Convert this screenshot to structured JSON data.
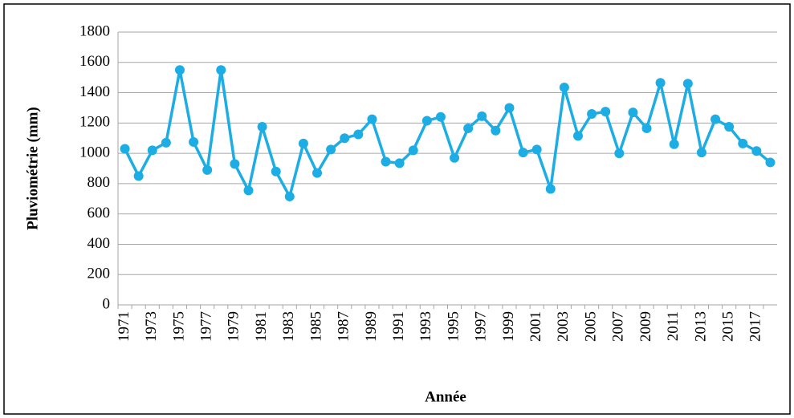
{
  "chart_data": {
    "type": "line",
    "x_label": "Année",
    "y_label": "Pluviométrie (mm)",
    "categories": [
      "1971",
      null,
      "1973",
      null,
      "1975",
      null,
      "1977",
      null,
      "1979",
      null,
      "1981",
      null,
      "1983",
      null,
      "1985",
      null,
      "1987",
      null,
      "1989",
      null,
      "1991",
      null,
      "1993",
      null,
      "1995",
      null,
      "1997",
      null,
      "1999",
      null,
      "2001",
      null,
      "2003",
      null,
      "2005",
      null,
      "2007",
      null,
      "2009",
      null,
      "2011",
      null,
      "2013",
      null,
      "2015",
      null,
      "2017",
      null
    ],
    "values": [
      1030,
      850,
      1020,
      1070,
      1550,
      1075,
      890,
      1550,
      930,
      755,
      1175,
      880,
      715,
      1065,
      870,
      1025,
      1100,
      1125,
      1225,
      945,
      935,
      1020,
      1215,
      1240,
      970,
      1165,
      1245,
      1150,
      1300,
      1005,
      1025,
      765,
      1435,
      1115,
      1260,
      1275,
      1000,
      1270,
      1165,
      1465,
      1060,
      1460,
      1005,
      1225,
      1175,
      1065,
      1015,
      940
    ],
    "color": "#1cade4",
    "ylim": [
      0,
      1800
    ],
    "yticks": [
      0,
      200,
      400,
      600,
      800,
      1000,
      1200,
      1400,
      1600,
      1800
    ],
    "grid": true
  }
}
